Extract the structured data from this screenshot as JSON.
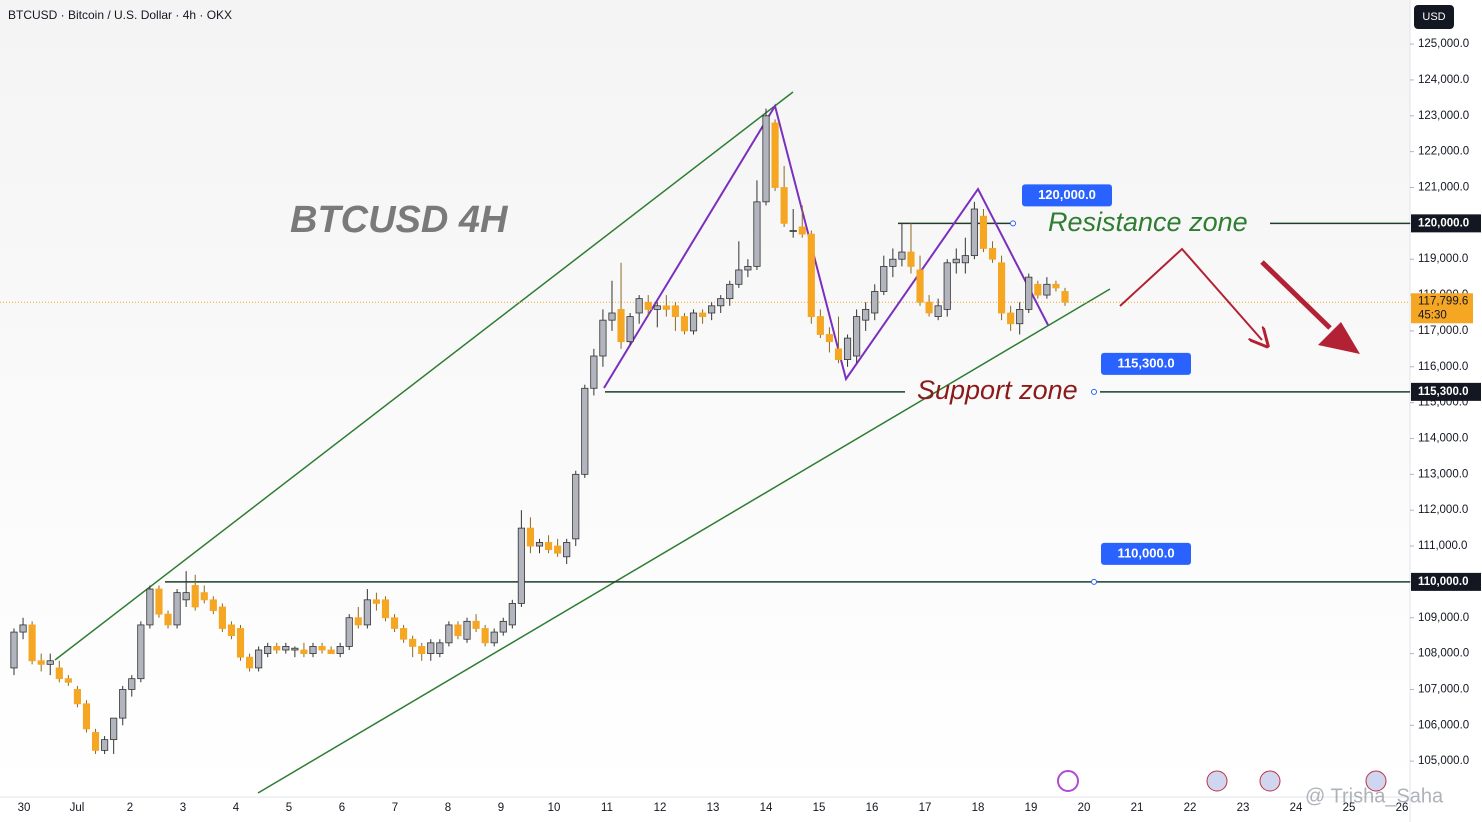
{
  "chart_data": {
    "type": "candlestick",
    "title": "BTCUSD · Bitcoin / U.S. Dollar · 4h · OKX",
    "watermark": "BTCUSD 4H",
    "currency": "USD",
    "annotations": {
      "resistance": "Resistance zone",
      "support": "Support zone",
      "signature": "@ Trisha_Saha"
    },
    "levels": [
      {
        "value": 120000,
        "label": "120,000.0"
      },
      {
        "value": 115300,
        "label": "115,300.0"
      },
      {
        "value": 110000,
        "label": "110,000.0"
      }
    ],
    "last_price": {
      "value": 117799.6,
      "label": "117,799.6",
      "timer": "45:30"
    },
    "up_color": "#b2b5be",
    "down_color": "#f5a623",
    "level_color": "#1f3d2b",
    "grid": false,
    "ylim": [
      104000,
      126230
    ],
    "yticks": [
      {
        "value": 105000,
        "label": "105,000.0"
      },
      {
        "value": 106000,
        "label": "106,000.0"
      },
      {
        "value": 107000,
        "label": "107,000.0"
      },
      {
        "value": 108000,
        "label": "108,000.0"
      },
      {
        "value": 109000,
        "label": "109,000.0"
      },
      {
        "value": 110000,
        "label": "110,000.0"
      },
      {
        "value": 111000,
        "label": "111,000.0"
      },
      {
        "value": 112000,
        "label": "112,000.0"
      },
      {
        "value": 113000,
        "label": "113,000.0"
      },
      {
        "value": 114000,
        "label": "114,000.0"
      },
      {
        "value": 115000,
        "label": "115,000.0"
      },
      {
        "value": 116000,
        "label": "116,000.0"
      },
      {
        "value": 117000,
        "label": "117,000.0"
      },
      {
        "value": 118000,
        "label": "118,000.0"
      },
      {
        "value": 119000,
        "label": "119,000.0"
      },
      {
        "value": 120000,
        "label": "120,000.0"
      },
      {
        "value": 121000,
        "label": "121,000.0"
      },
      {
        "value": 122000,
        "label": "122,000.0"
      },
      {
        "value": 123000,
        "label": "123,000.0"
      },
      {
        "value": 124000,
        "label": "124,000.0"
      },
      {
        "value": 125000,
        "label": "125,000.0"
      }
    ],
    "categories": [
      "30",
      "Jul",
      "2",
      "3",
      "4",
      "5",
      "6",
      "7",
      "8",
      "9",
      "10",
      "11",
      "12",
      "13",
      "14",
      "15",
      "16",
      "17",
      "18",
      "19",
      "20",
      "21",
      "22",
      "23",
      "24",
      "25",
      "26"
    ],
    "candles": [
      [
        107600,
        108700,
        107400,
        108600
      ],
      [
        108600,
        109000,
        108400,
        108800
      ],
      [
        108800,
        108900,
        107700,
        107800
      ],
      [
        107800,
        108000,
        107500,
        107700
      ],
      [
        107700,
        108000,
        107400,
        107800
      ],
      [
        107600,
        107800,
        107200,
        107300
      ],
      [
        107300,
        107400,
        107100,
        107200
      ],
      [
        107000,
        107100,
        106500,
        106600
      ],
      [
        106600,
        106700,
        105800,
        105900
      ],
      [
        105800,
        105900,
        105200,
        105300
      ],
      [
        105300,
        105700,
        105200,
        105600
      ],
      [
        105600,
        106200,
        105200,
        106200
      ],
      [
        106200,
        107100,
        106000,
        107000
      ],
      [
        107000,
        107400,
        106800,
        107300
      ],
      [
        107300,
        108900,
        107200,
        108800
      ],
      [
        108800,
        109900,
        108700,
        109800
      ],
      [
        109800,
        109900,
        109000,
        109100
      ],
      [
        109100,
        109200,
        108700,
        108800
      ],
      [
        108800,
        109800,
        108700,
        109700
      ],
      [
        109500,
        110300,
        109300,
        109700
      ],
      [
        109900,
        110200,
        109200,
        109300
      ],
      [
        109700,
        109900,
        109400,
        109500
      ],
      [
        109500,
        109600,
        109100,
        109200
      ],
      [
        109300,
        109400,
        108600,
        108700
      ],
      [
        108800,
        108900,
        108400,
        108500
      ],
      [
        108700,
        108800,
        107800,
        107900
      ],
      [
        107900,
        108000,
        107500,
        107600
      ],
      [
        107600,
        108200,
        107500,
        108100
      ],
      [
        108000,
        108300,
        107900,
        108200
      ],
      [
        108200,
        108300,
        108000,
        108100
      ],
      [
        108100,
        108300,
        108000,
        108200
      ],
      [
        108100,
        108200,
        107900,
        108150
      ],
      [
        108100,
        108300,
        107900,
        108000
      ],
      [
        108000,
        108300,
        107900,
        108200
      ],
      [
        108200,
        108300,
        108000,
        108100
      ],
      [
        108100,
        108200,
        108000,
        108000
      ],
      [
        108000,
        108300,
        107900,
        108200
      ],
      [
        108200,
        109100,
        108100,
        109000
      ],
      [
        109000,
        109300,
        108700,
        108800
      ],
      [
        108800,
        109800,
        108700,
        109500
      ],
      [
        109500,
        109700,
        109200,
        109400
      ],
      [
        109500,
        109600,
        108900,
        109000
      ],
      [
        109000,
        109100,
        108600,
        108700
      ],
      [
        108700,
        108800,
        108300,
        108400
      ],
      [
        108400,
        108500,
        107900,
        108200
      ],
      [
        108200,
        108300,
        107800,
        108000
      ],
      [
        108000,
        108400,
        107800,
        108300
      ],
      [
        108000,
        108400,
        107900,
        108300
      ],
      [
        108300,
        108900,
        108200,
        108800
      ],
      [
        108800,
        108900,
        108400,
        108500
      ],
      [
        108400,
        109000,
        108300,
        108900
      ],
      [
        108900,
        109100,
        108600,
        108700
      ],
      [
        108700,
        108800,
        108200,
        108300
      ],
      [
        108300,
        108700,
        108200,
        108600
      ],
      [
        108600,
        109000,
        108500,
        108900
      ],
      [
        108800,
        109500,
        108700,
        109400
      ],
      [
        109400,
        112000,
        109300,
        111500
      ],
      [
        111500,
        111800,
        110800,
        111000
      ],
      [
        111000,
        111200,
        110800,
        111100
      ],
      [
        111100,
        111300,
        110800,
        110900
      ],
      [
        111000,
        111200,
        110700,
        110800
      ],
      [
        110700,
        111200,
        110500,
        111100
      ],
      [
        111200,
        113100,
        111000,
        113000
      ],
      [
        113000,
        115500,
        112900,
        115400
      ],
      [
        115400,
        116500,
        115200,
        116300
      ],
      [
        116300,
        117600,
        116000,
        117300
      ],
      [
        117300,
        118400,
        117000,
        117500
      ],
      [
        117600,
        118900,
        116500,
        116700
      ],
      [
        116700,
        117500,
        116600,
        117400
      ],
      [
        117500,
        118000,
        117200,
        117900
      ],
      [
        117800,
        118000,
        117400,
        117600
      ],
      [
        117600,
        117800,
        117100,
        117700
      ],
      [
        117700,
        118000,
        117400,
        117600
      ],
      [
        117700,
        117800,
        117000,
        117400
      ],
      [
        117400,
        117500,
        116900,
        117000
      ],
      [
        117000,
        117600,
        116900,
        117500
      ],
      [
        117500,
        117600,
        117200,
        117400
      ],
      [
        117500,
        117800,
        117300,
        117700
      ],
      [
        117700,
        118000,
        117500,
        117900
      ],
      [
        117900,
        118400,
        117700,
        118300
      ],
      [
        118300,
        119500,
        118200,
        118700
      ],
      [
        118700,
        119000,
        118500,
        118800
      ],
      [
        118800,
        121200,
        118700,
        120600
      ],
      [
        120600,
        123200,
        120500,
        123000
      ],
      [
        122800,
        122900,
        120900,
        121000
      ],
      [
        121000,
        121600,
        119900,
        120000
      ],
      [
        119800,
        120400,
        119600,
        119800
      ],
      [
        119900,
        120500,
        119600,
        119700
      ],
      [
        119700,
        119800,
        117200,
        117400
      ],
      [
        117400,
        117600,
        116800,
        116900
      ],
      [
        116900,
        117100,
        116400,
        116700
      ],
      [
        116500,
        117400,
        116100,
        116200
      ],
      [
        116200,
        116900,
        116000,
        116800
      ],
      [
        116300,
        117600,
        116100,
        117400
      ],
      [
        117300,
        117800,
        117000,
        117600
      ],
      [
        117500,
        118300,
        117300,
        118100
      ],
      [
        118100,
        119100,
        118000,
        118800
      ],
      [
        118800,
        119300,
        118500,
        119000
      ],
      [
        119000,
        120000,
        118800,
        119200
      ],
      [
        119200,
        120000,
        118600,
        118800
      ],
      [
        118700,
        119100,
        117700,
        117800
      ],
      [
        117800,
        118000,
        117400,
        117500
      ],
      [
        117400,
        117900,
        117300,
        117700
      ],
      [
        117600,
        119000,
        117400,
        118900
      ],
      [
        118900,
        119300,
        118600,
        119000
      ],
      [
        118900,
        119600,
        118600,
        119100
      ],
      [
        119100,
        120600,
        119000,
        120400
      ],
      [
        120200,
        120400,
        119200,
        119300
      ],
      [
        119300,
        119500,
        118900,
        119000
      ],
      [
        118900,
        119100,
        117300,
        117500
      ],
      [
        117500,
        117700,
        117000,
        117200
      ],
      [
        117200,
        117800,
        116900,
        117600
      ],
      [
        117600,
        118600,
        117500,
        118500
      ],
      [
        118300,
        118400,
        117900,
        118000
      ],
      [
        118000,
        118500,
        117900,
        118300
      ],
      [
        118300,
        118400,
        118100,
        118200
      ],
      [
        118100,
        118200,
        117700,
        117800
      ]
    ]
  }
}
